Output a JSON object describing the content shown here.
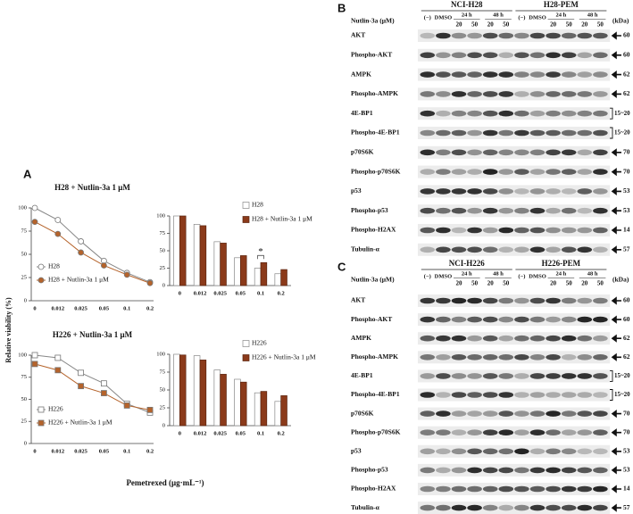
{
  "figure": {
    "panel_label": "A",
    "y_label": "Relative viability (%)",
    "x_label": "Pemetrexed (μg·mL⁻¹)"
  },
  "chart_data": [
    {
      "type": "line",
      "title": "H28 + Nutlin-3a 1 μM",
      "categories": [
        "0",
        "0.012",
        "0.025",
        "0.05",
        "0.1",
        "0.2"
      ],
      "series": [
        {
          "name": "H28",
          "color": "#ffffff",
          "marker": "circle",
          "values": [
            100,
            87,
            64,
            43,
            30,
            20
          ]
        },
        {
          "name": "H28 + Nutlin-3a 1 μM",
          "color": "#b5632b",
          "marker": "circle",
          "values": [
            85,
            72,
            52,
            38,
            28,
            19
          ]
        }
      ],
      "ylim": [
        0,
        100
      ],
      "yticks": [
        0,
        25,
        50,
        75,
        100
      ],
      "legend": "lower left"
    },
    {
      "type": "bar",
      "categories": [
        "0",
        "0.012",
        "0.025",
        "0.05",
        "0.1",
        "0.2"
      ],
      "series": [
        {
          "name": "H28",
          "color": "#ffffff",
          "values": [
            100,
            88,
            63,
            40,
            25,
            17
          ]
        },
        {
          "name": "H28 + Nutlin-3a 1 μM",
          "color": "#8b3a1a",
          "values": [
            100,
            86,
            61,
            43,
            33,
            23
          ]
        }
      ],
      "ylim": [
        0,
        100
      ],
      "yticks": [
        0,
        25,
        50,
        75,
        100
      ],
      "legend": "upper right",
      "annotation": "*"
    },
    {
      "type": "line",
      "title": "H226 + Nutlin-3a 1 μM",
      "categories": [
        "0",
        "0.012",
        "0.025",
        "0.05",
        "0.1",
        "0.2"
      ],
      "series": [
        {
          "name": "H226",
          "color": "#ffffff",
          "marker": "square",
          "values": [
            100,
            97,
            80,
            68,
            45,
            35
          ]
        },
        {
          "name": "H226 + Nutlin-3a 1 μM",
          "color": "#b5632b",
          "marker": "square",
          "values": [
            90,
            83,
            65,
            57,
            43,
            38
          ]
        }
      ],
      "ylim": [
        0,
        100
      ],
      "yticks": [
        0,
        25,
        50,
        75,
        100
      ],
      "legend": "lower left"
    },
    {
      "type": "bar",
      "categories": [
        "0",
        "0.012",
        "0.025",
        "0.05",
        "0.1",
        "0.2"
      ],
      "series": [
        {
          "name": "H226",
          "color": "#ffffff",
          "values": [
            100,
            98,
            78,
            65,
            46,
            34
          ]
        },
        {
          "name": "H226 + Nutlin-3a 1 μM",
          "color": "#8b3a1a",
          "values": [
            99,
            92,
            72,
            61,
            48,
            42
          ]
        }
      ],
      "ylim": [
        0,
        100
      ],
      "yticks": [
        0,
        25,
        50,
        75,
        100
      ],
      "legend": "upper right"
    }
  ],
  "blots": [
    {
      "label": "B",
      "cell_lines": [
        "NCI-H28",
        "H28-PEM"
      ],
      "treatment_label": "Nutlin-3a (μM)",
      "lanes": [
        "(−)",
        "DMSO"
      ],
      "times": [
        "24 h",
        "48 h"
      ],
      "doses": [
        "20",
        "50"
      ],
      "unit_label": "(kDa)",
      "rows": [
        {
          "protein": "AKT",
          "kda": 60
        },
        {
          "protein": "Phospho-AKT",
          "kda": 60
        },
        {
          "protein": "AMPK",
          "kda": 62
        },
        {
          "protein": "Phospho-AMPK",
          "kda": 62
        },
        {
          "protein": "4E-BP1",
          "kda": "15~20"
        },
        {
          "protein": "Phospho-4E-BP1",
          "kda": "15~20"
        },
        {
          "protein": "p70S6K",
          "kda": 70
        },
        {
          "protein": "Phospho-p70S6K",
          "kda": 70
        },
        {
          "protein": "p53",
          "kda": 53
        },
        {
          "protein": "Phospho-p53",
          "kda": 53
        },
        {
          "protein": "Phospho-H2AX",
          "kda": 14
        },
        {
          "protein": "Tubulin-α",
          "kda": 57
        }
      ]
    },
    {
      "label": "C",
      "cell_lines": [
        "NCI-H226",
        "H226-PEM"
      ],
      "treatment_label": "Nutlin-3a (μM)",
      "lanes": [
        "(−)",
        "DMSO"
      ],
      "times": [
        "24 h",
        "48 h"
      ],
      "doses": [
        "20",
        "50"
      ],
      "unit_label": "(kDa)",
      "rows": [
        {
          "protein": "AKT",
          "kda": 60
        },
        {
          "protein": "Phospho-AKT",
          "kda": 60
        },
        {
          "protein": "AMPK",
          "kda": 62
        },
        {
          "protein": "Phospho-AMPK",
          "kda": 62
        },
        {
          "protein": "4E-BP1",
          "kda": "15~20"
        },
        {
          "protein": "Phospho-4E-BP1",
          "kda": "15~20"
        },
        {
          "protein": "p70S6K",
          "kda": 70
        },
        {
          "protein": "Phospho-p70S6K",
          "kda": 70
        },
        {
          "protein": "p53",
          "kda": 53
        },
        {
          "protein": "Phospho-p53",
          "kda": 53
        },
        {
          "protein": "Phospho-H2AX",
          "kda": 14
        },
        {
          "protein": "Tubulin-α",
          "kda": 57
        }
      ]
    }
  ]
}
